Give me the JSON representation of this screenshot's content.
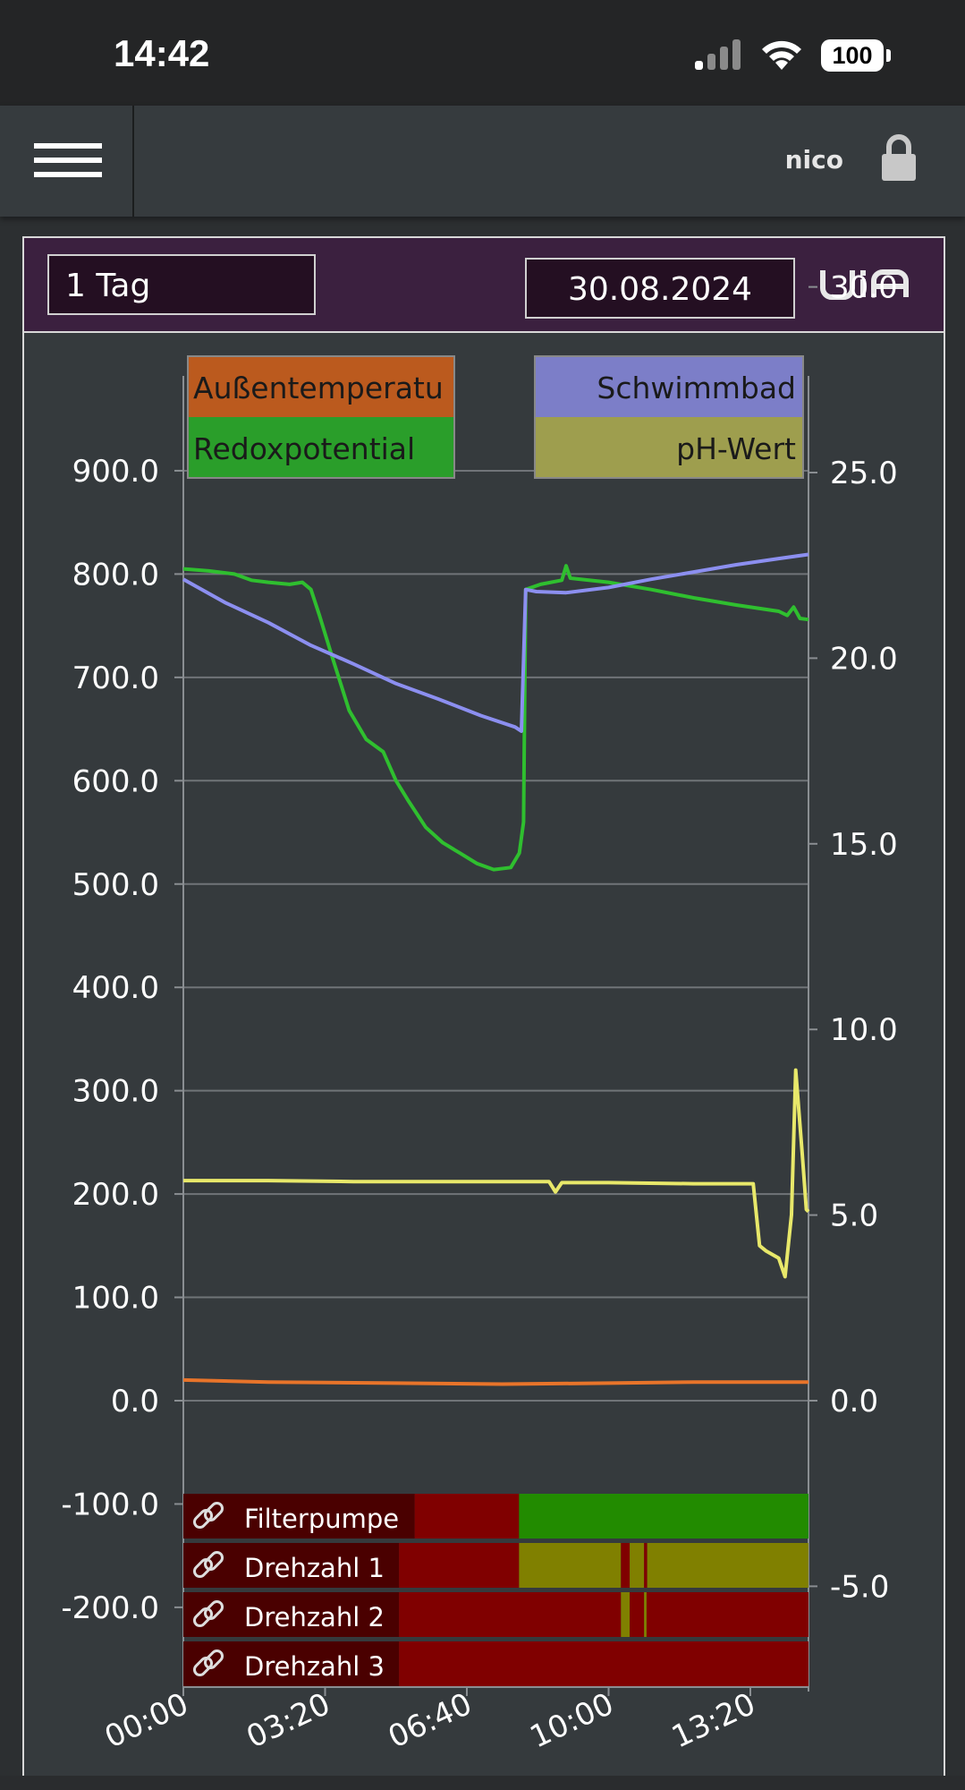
{
  "status_bar": {
    "time": "14:42",
    "battery": "100",
    "icons": [
      "signal-icon",
      "wifi-icon",
      "battery-icon"
    ]
  },
  "app_bar": {
    "menu_icon": "hamburger-icon",
    "user": "nico",
    "lock_icon": "lock-icon"
  },
  "panel": {
    "period": "1 Tag",
    "date": "30.08.2024",
    "logo": "UiA"
  },
  "legend": {
    "left": [
      "Außentemperatu",
      "Redoxpotential"
    ],
    "right": [
      "Schwimmbad",
      "pH-Wert"
    ]
  },
  "colors": {
    "outdoor": "#e8742a",
    "redox": "#2fbf2f",
    "pool": "#8c8ff0",
    "ph": "#e8e86a",
    "off": "#800000",
    "on": "#228b00",
    "partial": "#808000"
  },
  "status_rows": [
    "Filterpumpe",
    "Drehzahl 1",
    "Drehzahl 2",
    "Drehzahl 3"
  ],
  "chart_data": {
    "type": "line",
    "left_axis": {
      "ticks": [
        "900.0",
        "800.0",
        "700.0",
        "600.0",
        "500.0",
        "400.0",
        "300.0",
        "200.0",
        "100.0",
        "0.0",
        "-100.0",
        "-200.0"
      ],
      "range": [
        -270,
        910
      ]
    },
    "right_axis": {
      "ticks": [
        "30.0",
        "25.0",
        "20.0",
        "15.0",
        "10.0",
        "5.0",
        "0.0",
        "-5.0"
      ],
      "range": [
        -9,
        30.3
      ]
    },
    "x_ticks": [
      "00:00",
      "03:20",
      "06:40",
      "10:00",
      "13:20"
    ],
    "x_range_hours": [
      0,
      14.7
    ],
    "grid": true,
    "series": [
      {
        "key": "outdoor",
        "axis": "left",
        "points": [
          [
            0,
            20
          ],
          [
            2,
            18
          ],
          [
            5,
            17
          ],
          [
            7.5,
            16
          ],
          [
            10,
            17
          ],
          [
            12,
            18
          ],
          [
            14.7,
            18
          ]
        ]
      },
      {
        "key": "redox",
        "axis": "left",
        "points": [
          [
            0,
            805
          ],
          [
            0.6,
            803
          ],
          [
            1.2,
            800
          ],
          [
            1.6,
            794
          ],
          [
            2,
            792
          ],
          [
            2.5,
            790
          ],
          [
            2.8,
            792
          ],
          [
            3,
            785
          ],
          [
            3.2,
            760
          ],
          [
            3.5,
            720
          ],
          [
            3.9,
            668
          ],
          [
            4.3,
            640
          ],
          [
            4.7,
            628
          ],
          [
            5,
            600
          ],
          [
            5.3,
            580
          ],
          [
            5.7,
            555
          ],
          [
            6.1,
            540
          ],
          [
            6.5,
            530
          ],
          [
            6.9,
            520
          ],
          [
            7.3,
            514
          ],
          [
            7.7,
            516
          ],
          [
            7.9,
            530
          ],
          [
            8,
            560
          ],
          [
            8.05,
            785
          ],
          [
            8.4,
            790
          ],
          [
            8.9,
            794
          ],
          [
            9,
            808
          ],
          [
            9.1,
            796
          ],
          [
            10,
            792
          ],
          [
            11,
            785
          ],
          [
            12,
            777
          ],
          [
            13,
            770
          ],
          [
            14,
            764
          ],
          [
            14.2,
            760
          ],
          [
            14.35,
            768
          ],
          [
            14.5,
            757
          ],
          [
            14.7,
            756
          ]
        ]
      },
      {
        "key": "pool",
        "axis": "left",
        "points": [
          [
            0,
            795
          ],
          [
            1,
            772
          ],
          [
            2,
            753
          ],
          [
            3,
            731
          ],
          [
            4,
            713
          ],
          [
            5,
            694
          ],
          [
            6,
            679
          ],
          [
            7,
            663
          ],
          [
            7.8,
            652
          ],
          [
            7.95,
            648
          ],
          [
            8.05,
            785
          ],
          [
            8.3,
            783
          ],
          [
            9,
            782
          ],
          [
            10,
            787
          ],
          [
            11,
            795
          ],
          [
            12,
            802
          ],
          [
            13,
            809
          ],
          [
            14,
            815
          ],
          [
            14.7,
            819
          ]
        ]
      },
      {
        "key": "ph",
        "axis": "left",
        "points": [
          [
            0,
            213
          ],
          [
            2,
            213
          ],
          [
            4,
            212
          ],
          [
            6,
            212
          ],
          [
            8.6,
            212
          ],
          [
            8.75,
            202
          ],
          [
            8.9,
            211
          ],
          [
            10,
            211
          ],
          [
            12,
            210
          ],
          [
            13.4,
            210
          ],
          [
            13.55,
            150
          ],
          [
            13.7,
            145
          ],
          [
            14,
            138
          ],
          [
            14.15,
            120
          ],
          [
            14.3,
            180
          ],
          [
            14.4,
            320
          ],
          [
            14.55,
            240
          ],
          [
            14.65,
            185
          ],
          [
            14.7,
            183
          ]
        ]
      }
    ]
  }
}
